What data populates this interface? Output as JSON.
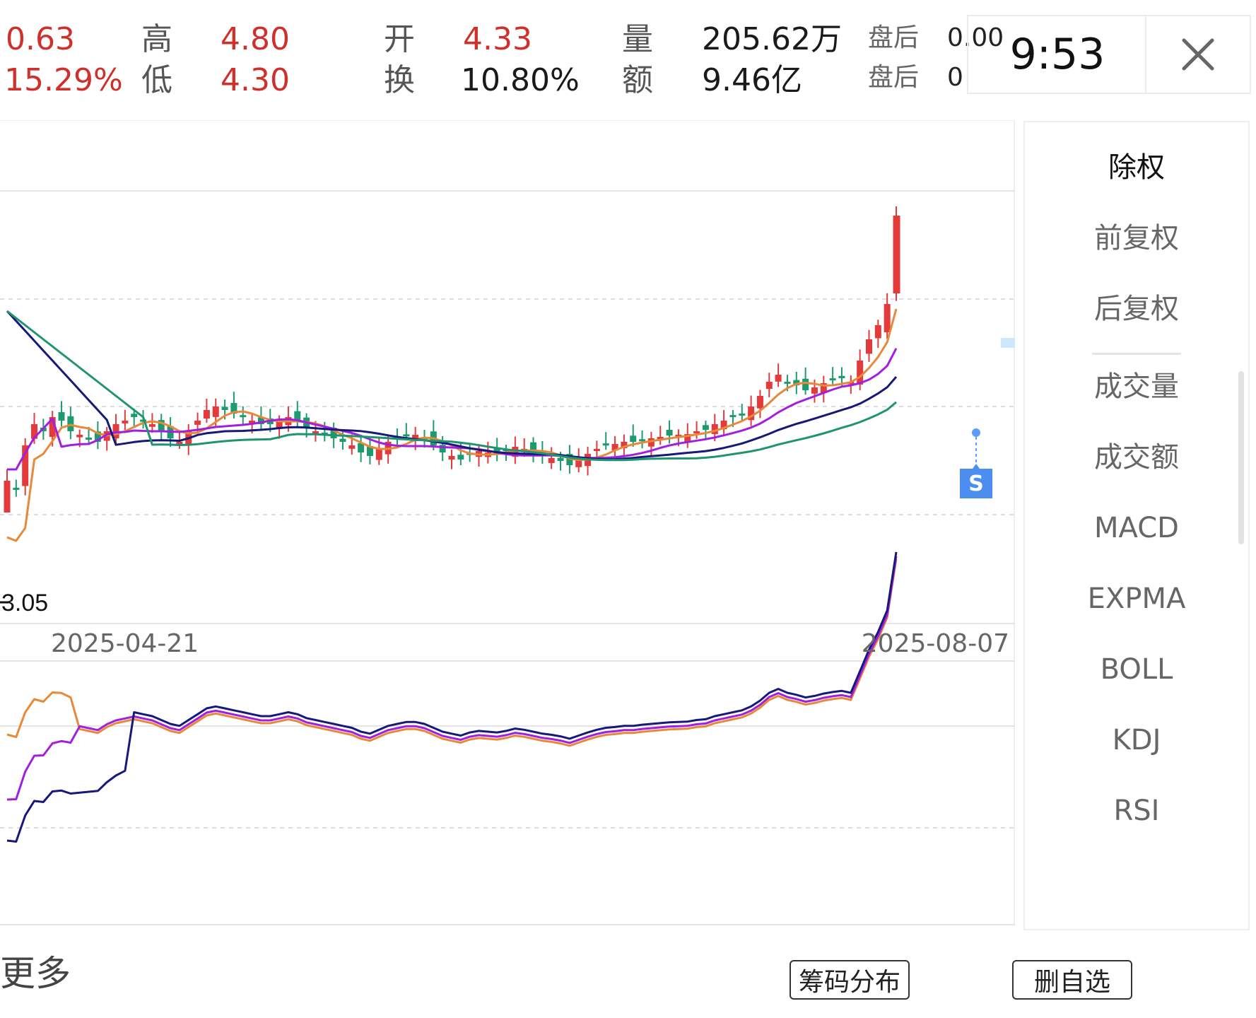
{
  "header": {
    "price_change": "0.63",
    "pct_change": "15.29%",
    "high_label": "高",
    "high_value": "4.80",
    "low_label": "低",
    "low_value": "4.30",
    "open_label": "开",
    "open_value": "4.33",
    "turnover_label": "换",
    "turnover_value": "10.80%",
    "volume_label": "量",
    "volume_value": "205.62万",
    "amount_label": "额",
    "amount_value": "9.46亿",
    "after_label_1": "盘后",
    "after_value_1": "0.00",
    "after_label_2": "盘后",
    "after_value_2": "0",
    "time": "9:53",
    "close_icon": "close-icon"
  },
  "chart": {
    "low_marker": "3.05",
    "date_start": "2025-04-21",
    "date_end": "2025-08-07",
    "signal_badge": "S",
    "colors": {
      "up": "#e33b3b",
      "down": "#1e9b6e",
      "ma5": "#e8893a",
      "ma10": "#a21fe0",
      "ma20": "#17197a",
      "ma30": "#1e9470"
    }
  },
  "chart_data": [
    {
      "type": "candlestick",
      "title": "",
      "x_range": [
        "2025-04-21",
        "2025-08-07"
      ],
      "annotations": [
        "3.05 (period low)",
        "S signal near 2025-08-07"
      ],
      "grid": true,
      "series": [
        {
          "values": "OHLC candles (daily)"
        },
        {
          "values": "moving averages (4 lines)"
        }
      ]
    },
    {
      "type": "line",
      "title": "",
      "series": [
        {
          "values": "indicator line 1"
        },
        {
          "values": "indicator line 2"
        },
        {
          "values": "indicator line 3"
        }
      ]
    }
  ],
  "sidebar": {
    "items": [
      {
        "label": "除权",
        "active": true
      },
      {
        "label": "前复权",
        "active": false
      },
      {
        "label": "后复权",
        "active": false
      },
      {
        "label": "成交量",
        "active": false
      },
      {
        "label": "成交额",
        "active": false
      },
      {
        "label": "MACD",
        "active": false
      },
      {
        "label": "EXPMA",
        "active": false
      },
      {
        "label": "BOLL",
        "active": false
      },
      {
        "label": "KDJ",
        "active": false
      },
      {
        "label": "RSI",
        "active": false
      }
    ]
  },
  "footer": {
    "more_label": "更多",
    "chip_button": "筹码分布",
    "remove_button": "删自选"
  }
}
